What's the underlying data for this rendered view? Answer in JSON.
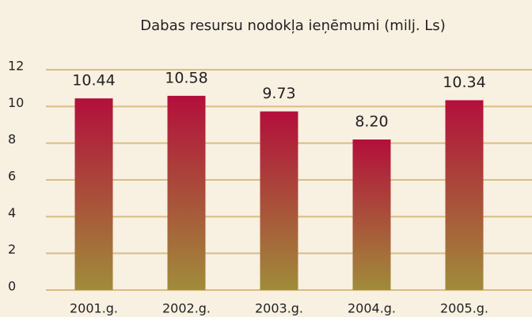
{
  "chart_data": {
    "type": "bar",
    "title": "Dabas resursu nodokļa ieņēmumi (milj. Ls)",
    "categories": [
      "2001.g.",
      "2002.g.",
      "2003.g.",
      "2004.g.",
      "2005.g."
    ],
    "values": [
      10.44,
      10.58,
      9.73,
      8.2,
      10.34
    ],
    "value_labels": [
      "10.44",
      "10.58",
      "9.73",
      "8.20",
      "10.34"
    ],
    "gradient": [
      "#b30f3b",
      "#a08c3a"
    ],
    "ylim": [
      0,
      12
    ],
    "yticks": [
      0,
      2,
      4,
      6,
      8,
      10,
      12
    ],
    "grid": true,
    "grid_color": "#d9bd82"
  }
}
